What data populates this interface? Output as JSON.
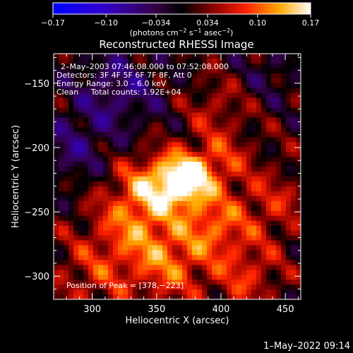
{
  "chart_data": {
    "type": "heatmap",
    "title": "Reconstructed RHESSI Image",
    "xlabel": "Heliocentric X (arcsec)",
    "ylabel": "Heliocentric Y (arcsec)",
    "xlim": [
      270,
      462
    ],
    "ylim": [
      -318,
      -127
    ],
    "x_ticks": [
      300,
      350,
      400,
      450
    ],
    "y_ticks": [
      -300,
      -250,
      -200,
      -150
    ],
    "colorbar": {
      "range": [
        -0.17,
        0.17
      ],
      "tick_values": [
        -0.17,
        -0.1,
        -0.034,
        0.034,
        0.1,
        0.17
      ],
      "tick_labels": [
        "−0.17",
        "−0.10",
        "−0.034",
        "0.034",
        "0.10",
        "0.17"
      ],
      "unit_base": "(photons cm",
      "unit_exp1": "−2",
      "unit_mid": " s",
      "unit_exp2": "−1",
      "unit_mid2": " asec",
      "unit_exp3": "−2",
      "unit_end": ")"
    },
    "annotations": {
      "time_range": "2–May–2003 07:46:08.000 to 07:52:08.000",
      "detectors": "Detectors: 3F 4F 5F 6F 7F 8F, Att 0",
      "energy": "Energy Range: 3.0 – 6.0 keV",
      "clean": "Clean     Total counts: 1.92E+04",
      "peak": "Position of Peak = [378,−223]"
    },
    "peak": {
      "x": 378,
      "y": -223,
      "value": 0.17
    },
    "sources": [
      {
        "x": 372,
        "y": -225,
        "amp": 0.17,
        "sigma": 14
      },
      {
        "x": 345,
        "y": -230,
        "amp": 0.09,
        "sigma": 18
      },
      {
        "x": 400,
        "y": -210,
        "amp": 0.06,
        "sigma": 16
      },
      {
        "x": 330,
        "y": -260,
        "amp": 0.07,
        "sigma": 22
      },
      {
        "x": 395,
        "y": -260,
        "amp": 0.08,
        "sigma": 18
      },
      {
        "x": 360,
        "y": -290,
        "amp": 0.08,
        "sigma": 22
      },
      {
        "x": 420,
        "y": -300,
        "amp": 0.06,
        "sigma": 18
      },
      {
        "x": 440,
        "y": -245,
        "amp": 0.05,
        "sigma": 20
      },
      {
        "x": 300,
        "y": -300,
        "amp": 0.05,
        "sigma": 22
      },
      {
        "x": 395,
        "y": -170,
        "amp": 0.04,
        "sigma": 16
      },
      {
        "x": 320,
        "y": -155,
        "amp": -0.06,
        "sigma": 24
      },
      {
        "x": 285,
        "y": -200,
        "amp": -0.05,
        "sigma": 20
      },
      {
        "x": 440,
        "y": -140,
        "amp": -0.03,
        "sigma": 16
      }
    ]
  },
  "footer": {
    "date": "1–May–2022 09:14"
  }
}
